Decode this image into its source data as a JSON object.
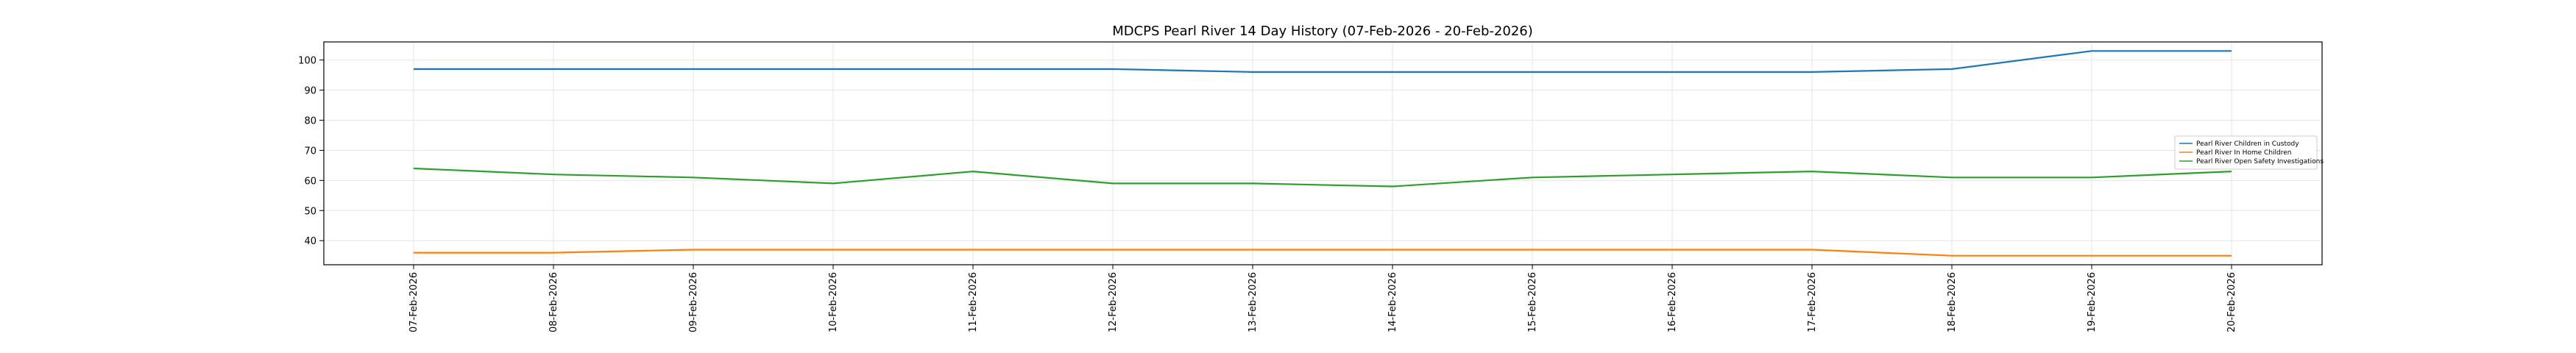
{
  "chart_data": {
    "type": "line",
    "title": "MDCPS Pearl River 14 Day History (07-Feb-2026 - 20-Feb-2026)",
    "xlabel": "",
    "ylabel": "",
    "categories": [
      "07-Feb-2026",
      "08-Feb-2026",
      "09-Feb-2026",
      "10-Feb-2026",
      "11-Feb-2026",
      "12-Feb-2026",
      "13-Feb-2026",
      "14-Feb-2026",
      "15-Feb-2026",
      "16-Feb-2026",
      "17-Feb-2026",
      "18-Feb-2026",
      "19-Feb-2026",
      "20-Feb-2026"
    ],
    "ylim": [
      32,
      106
    ],
    "yticks": [
      40,
      50,
      60,
      70,
      80,
      90,
      100
    ],
    "grid": true,
    "legend_position": "center-right",
    "series": [
      {
        "name": "Pearl River Children in Custody",
        "color": "#1f77b4",
        "values": [
          97,
          97,
          97,
          97,
          97,
          97,
          96,
          96,
          96,
          96,
          96,
          97,
          103,
          103
        ]
      },
      {
        "name": "Pearl River In Home Children",
        "color": "#ff7f0e",
        "values": [
          36,
          36,
          37,
          37,
          37,
          37,
          37,
          37,
          37,
          37,
          37,
          35,
          35,
          35
        ]
      },
      {
        "name": "Pearl River Open Safety Investigations",
        "color": "#2ca02c",
        "values": [
          64,
          62,
          61,
          59,
          63,
          59,
          59,
          58,
          61,
          62,
          63,
          61,
          61,
          63
        ]
      }
    ]
  }
}
